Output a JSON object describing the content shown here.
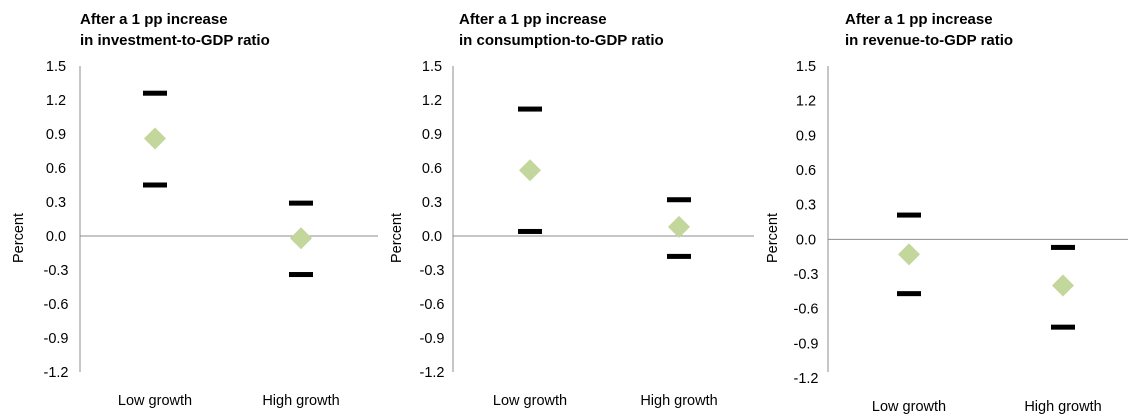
{
  "chart_data": [
    {
      "type": "scatter",
      "title_lines": [
        "After a 1 pp increase",
        "in investment-to-GDP ratio"
      ],
      "ylabel": "Percent",
      "categories": [
        "Low growth",
        "High growth"
      ],
      "ylim": [
        -1.2,
        1.5
      ],
      "yticks": [
        "1.5",
        "1.2",
        "0.9",
        "0.6",
        "0.3",
        "0.0",
        "-0.3",
        "-0.6",
        "-0.9",
        "-1.2"
      ],
      "ytick_values": [
        1.5,
        1.2,
        0.9,
        0.6,
        0.3,
        0.0,
        -0.3,
        -0.6,
        -0.9,
        -1.2
      ],
      "series": [
        {
          "role": "point estimate",
          "marker": "diamond",
          "color": "#c3d69b",
          "values": [
            0.86,
            -0.02
          ]
        },
        {
          "role": "upper bound",
          "marker": "dash",
          "color": "#000000",
          "values": [
            1.26,
            0.29
          ]
        },
        {
          "role": "lower bound",
          "marker": "dash",
          "color": "#000000",
          "values": [
            0.45,
            -0.34
          ]
        }
      ]
    },
    {
      "type": "scatter",
      "title_lines": [
        "After a 1 pp increase",
        "in consumption-to-GDP ratio"
      ],
      "ylabel": "Percent",
      "categories": [
        "Low growth",
        "High growth"
      ],
      "ylim": [
        -1.2,
        1.5
      ],
      "yticks": [
        "1.5",
        "1.2",
        "0.9",
        "0.6",
        "0.3",
        "0.0",
        "-0.3",
        "-0.6",
        "-0.9",
        "-1.2"
      ],
      "ytick_values": [
        1.5,
        1.2,
        0.9,
        0.6,
        0.3,
        0.0,
        -0.3,
        -0.6,
        -0.9,
        -1.2
      ],
      "series": [
        {
          "role": "point estimate",
          "marker": "diamond",
          "color": "#c3d69b",
          "values": [
            0.58,
            0.08
          ]
        },
        {
          "role": "upper bound",
          "marker": "dash",
          "color": "#000000",
          "values": [
            1.12,
            0.32
          ]
        },
        {
          "role": "lower bound",
          "marker": "dash",
          "color": "#000000",
          "values": [
            0.04,
            -0.18
          ]
        }
      ]
    },
    {
      "type": "scatter",
      "title_lines": [
        "After a 1 pp increase",
        "in revenue-to-GDP ratio"
      ],
      "ylabel": "Percent",
      "categories": [
        "Low growth",
        "High growth"
      ],
      "ylim": [
        -1.2,
        1.5
      ],
      "yticks": [
        "1.5",
        "1.2",
        "0.9",
        "0.6",
        "0.3",
        "0.0",
        "-0.3",
        "-0.6",
        "-0.9",
        "-1.2"
      ],
      "ytick_values": [
        1.5,
        1.2,
        0.9,
        0.6,
        0.3,
        0.0,
        -0.3,
        -0.6,
        -0.9,
        -1.2
      ],
      "series": [
        {
          "role": "point estimate",
          "marker": "diamond",
          "color": "#c3d69b",
          "values": [
            -0.13,
            -0.4
          ]
        },
        {
          "role": "upper bound",
          "marker": "dash",
          "color": "#000000",
          "values": [
            0.21,
            -0.07
          ]
        },
        {
          "role": "lower bound",
          "marker": "dash",
          "color": "#000000",
          "values": [
            -0.47,
            -0.76
          ]
        }
      ]
    }
  ]
}
